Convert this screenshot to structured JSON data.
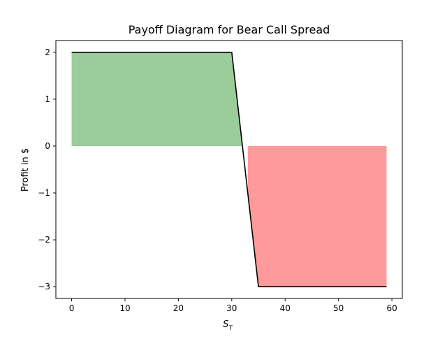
{
  "chart_data": {
    "type": "line",
    "title": "Payoff Diagram for Bear Call Spread",
    "xlabel_base": "S",
    "xlabel_sub": "T",
    "ylabel": "Profit in $",
    "xlim": [
      -2.95,
      61.95
    ],
    "ylim": [
      -3.25,
      2.25
    ],
    "xticks": [
      0,
      10,
      20,
      30,
      40,
      50,
      60
    ],
    "yticks": [
      2,
      1,
      0,
      -1,
      -2,
      -3
    ],
    "ytick_labels": [
      "2",
      "1",
      "0",
      "−1",
      "−2",
      "−3"
    ],
    "series": [
      {
        "x": [
          0,
          30,
          35,
          59
        ],
        "y": [
          2,
          2,
          -3,
          -3
        ],
        "color": "#000000"
      }
    ],
    "fills": [
      {
        "x_from": 0,
        "x_to": 32,
        "y_top": 2,
        "slope_end": [
          30,
          2,
          32,
          0
        ],
        "color": "#9acd9a",
        "kind": "profit"
      },
      {
        "x_from": 33,
        "x_to": 59,
        "y_bottom": -3,
        "slope_start": [
          33,
          -1,
          35,
          -3
        ],
        "color": "#ff9a9a",
        "kind": "loss"
      }
    ],
    "grid": false,
    "legend": "none"
  }
}
